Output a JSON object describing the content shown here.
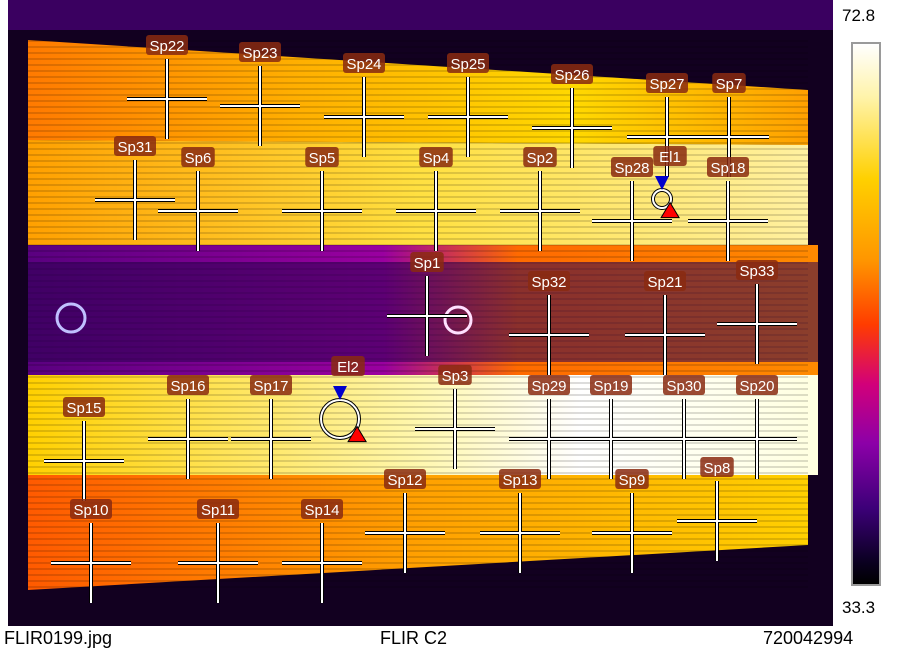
{
  "scale": {
    "max": "72.8",
    "min": "33.3"
  },
  "footer": {
    "filename": "FLIR0199.jpg",
    "camera": "FLIR C2",
    "serial": "720042994"
  },
  "spots": [
    "Sp22",
    "Sp23",
    "Sp24",
    "Sp25",
    "Sp26",
    "Sp27",
    "Sp7",
    "Sp31",
    "Sp6",
    "Sp5",
    "Sp4",
    "Sp2",
    "Sp28",
    "Sp18",
    "Sp1",
    "Sp32",
    "Sp21",
    "Sp33",
    "Sp3",
    "Sp16",
    "Sp17",
    "Sp15",
    "Sp29",
    "Sp19",
    "Sp30",
    "Sp20",
    "Sp12",
    "Sp13",
    "Sp9",
    "Sp8",
    "Sp10",
    "Sp11",
    "Sp14"
  ],
  "ellipses": [
    "El1",
    "El2"
  ],
  "colors": {
    "hot": "#ffffe0",
    "warm": "#ffc800",
    "mid": "#ff7a00",
    "cool": "#a000b4",
    "cold": "#200040",
    "label_bg": "#8a2a10",
    "cold_marker": "#0000cc",
    "hot_marker": "#ff0000"
  }
}
